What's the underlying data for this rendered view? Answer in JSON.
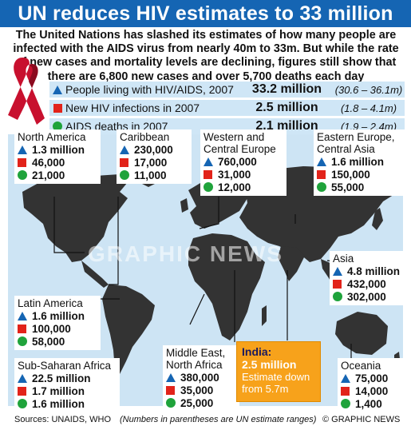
{
  "title": "UN reduces HIV estimates to 33 million",
  "intro": "The United Nations has slashed its estimates of how many people are infected with the AIDS virus from nearly 40m to 33m. But while the rate of new cases and mortality levels are declining, figures still show that there are 6,800 new cases and over 5,700 deaths each day",
  "summary": [
    {
      "label": "People living with HIV/AIDS, 2007",
      "value": "33.2 million",
      "range": "(30.6 – 36.1m)"
    },
    {
      "label": "New HIV infections in 2007",
      "value": "2.5 million",
      "range": "(1.8 – 4.1m)"
    },
    {
      "label": "AIDS deaths in 2007",
      "value": "2.1 million",
      "range": "(1.9 – 2.4m)"
    }
  ],
  "regions": {
    "north_america": {
      "name": "North America",
      "living": "1.3 million",
      "new": "46,000",
      "deaths": "21,000"
    },
    "caribbean": {
      "name": "Caribbean",
      "living": "230,000",
      "new": "17,000",
      "deaths": "11,000"
    },
    "western_europe": {
      "name1": "Western and",
      "name2": "Central Europe",
      "living": "760,000",
      "new": "31,000",
      "deaths": "12,000"
    },
    "eastern_europe": {
      "name1": "Eastern Europe,",
      "name2": "Central Asia",
      "living": "1.6 million",
      "new": "150,000",
      "deaths": "55,000"
    },
    "asia": {
      "name": "Asia",
      "living": "4.8 million",
      "new": "432,000",
      "deaths": "302,000"
    },
    "latin_america": {
      "name": "Latin America",
      "living": "1.6 million",
      "new": "100,000",
      "deaths": "58,000"
    },
    "sub_saharan": {
      "name": "Sub-Saharan Africa",
      "living": "22.5 million",
      "new": "1.7 million",
      "deaths": "1.6 million"
    },
    "middle_east": {
      "name1": "Middle East,",
      "name2": "North Africa",
      "living": "380,000",
      "new": "35,000",
      "deaths": "25,000"
    },
    "oceania": {
      "name": "Oceania",
      "living": "75,000",
      "new": "14,000",
      "deaths": "1,400"
    }
  },
  "india": {
    "name": "India:",
    "value": "2.5 million",
    "note1": "Estimate down",
    "note2": "from 5.7m"
  },
  "watermark": "GRAPHIC NEWS",
  "footer": {
    "sources": "Sources: UNAIDS, WHO",
    "note": "(Numbers in parentheses are UN estimate ranges)",
    "credit": "© GRAPHIC NEWS"
  },
  "colors": {
    "title_bg": "#1565b3",
    "living": "#1565b3",
    "new": "#e2231a",
    "deaths": "#1fa33b",
    "land": "#333333",
    "sea": "#cde4f4",
    "india_box": "#f7a21b"
  }
}
